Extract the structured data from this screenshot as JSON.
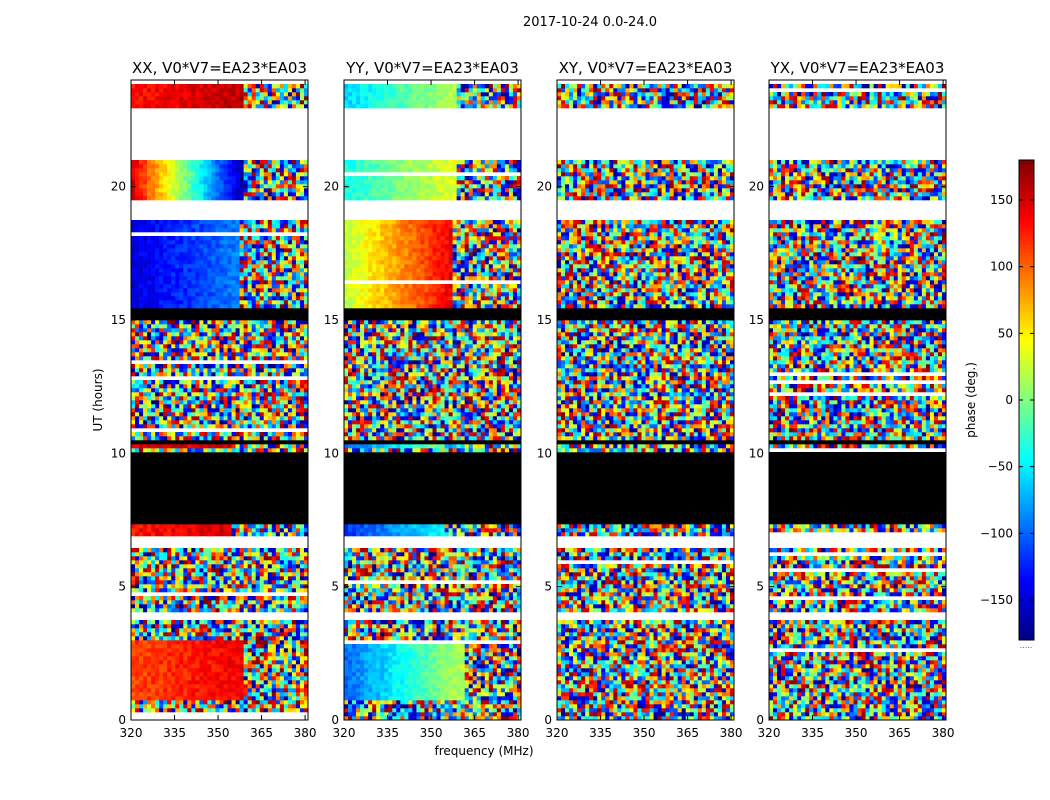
{
  "figure": {
    "suptitle": "2017-10-24 0.0-24.0",
    "xlabel": "frequency (MHz)",
    "ylabel": "UT (hours)",
    "colorbar_label": "phase (deg.)"
  },
  "chart_data": [
    {
      "type": "heatmap",
      "title": "XX, V0*V7=EA23*EA03",
      "xlabel": "frequency (MHz)",
      "ylabel": "UT (hours)",
      "xlim": [
        320,
        381
      ],
      "ylim": [
        0,
        24
      ],
      "xticks": [
        320,
        335,
        350,
        365,
        380
      ],
      "yticks": [
        0,
        5,
        10,
        15,
        20
      ],
      "value_range": [
        -180,
        180
      ],
      "colormap": "jet",
      "coherent_phase_segments": [
        {
          "t_start": 0.8,
          "t_end": 3.0,
          "f_start": 320,
          "f_end": 359,
          "phase_start": 110,
          "phase_end": 140
        },
        {
          "t_start": 6.9,
          "t_end": 7.4,
          "f_start": 320,
          "f_end": 355,
          "phase_start": 130,
          "phase_end": 150
        },
        {
          "t_start": 10.2,
          "t_end": 10.4,
          "f_start": 320,
          "f_end": 355,
          "phase_start": 140,
          "phase_end": 150
        },
        {
          "t_start": 15.5,
          "t_end": 18.7,
          "f_start": 320,
          "f_end": 357,
          "phase_start": -150,
          "phase_end": -90
        },
        {
          "t_start": 19.5,
          "t_end": 21.0,
          "f_start": 320,
          "f_end": 359,
          "phase_start": 150,
          "phase_end": -170
        },
        {
          "t_start": 23.0,
          "t_end": 23.9,
          "f_start": 320,
          "f_end": 359,
          "phase_start": 130,
          "phase_end": 160
        }
      ]
    },
    {
      "type": "heatmap",
      "title": "YY, V0*V7=EA23*EA03",
      "xlabel": "frequency (MHz)",
      "ylabel": "UT (hours)",
      "xlim": [
        320,
        381
      ],
      "ylim": [
        0,
        24
      ],
      "xticks": [
        320,
        335,
        350,
        365,
        380
      ],
      "yticks": [
        0,
        5,
        10,
        15,
        20
      ],
      "value_range": [
        -180,
        180
      ],
      "colormap": "jet",
      "coherent_phase_segments": [
        {
          "t_start": 0.8,
          "t_end": 3.0,
          "f_start": 320,
          "f_end": 361,
          "phase_start": -100,
          "phase_end": 20
        },
        {
          "t_start": 6.9,
          "t_end": 7.4,
          "f_start": 320,
          "f_end": 355,
          "phase_start": -120,
          "phase_end": -40
        },
        {
          "t_start": 10.2,
          "t_end": 10.4,
          "f_start": 320,
          "f_end": 355,
          "phase_start": -100,
          "phase_end": 0
        },
        {
          "t_start": 15.5,
          "t_end": 18.7,
          "f_start": 320,
          "f_end": 357,
          "phase_start": 20,
          "phase_end": 140
        },
        {
          "t_start": 19.5,
          "t_end": 21.0,
          "f_start": 320,
          "f_end": 359,
          "phase_start": -40,
          "phase_end": 40
        },
        {
          "t_start": 23.0,
          "t_end": 23.9,
          "f_start": 320,
          "f_end": 359,
          "phase_start": -60,
          "phase_end": 20
        }
      ]
    },
    {
      "type": "heatmap",
      "title": "XY, V0*V7=EA23*EA03",
      "xlabel": "frequency (MHz)",
      "ylabel": "UT (hours)",
      "xlim": [
        320,
        381
      ],
      "ylim": [
        0,
        24
      ],
      "xticks": [
        320,
        335,
        350,
        365,
        380
      ],
      "yticks": [
        0,
        5,
        10,
        15,
        20
      ],
      "value_range": [
        -180,
        180
      ],
      "colormap": "jet",
      "coherent_phase_segments": []
    },
    {
      "type": "heatmap",
      "title": "YX, V0*V7=EA23*EA03",
      "xlabel": "frequency (MHz)",
      "ylabel": "UT (hours)",
      "xlim": [
        320,
        381
      ],
      "ylim": [
        0,
        24
      ],
      "xticks": [
        320,
        335,
        350,
        365,
        380
      ],
      "yticks": [
        0,
        5,
        10,
        15,
        20
      ],
      "value_range": [
        -180,
        180
      ],
      "colormap": "jet",
      "coherent_phase_segments": []
    }
  ],
  "time_structure": {
    "flagged_black_intervals": [
      [
        7.4,
        10.0
      ],
      [
        15.0,
        15.5
      ],
      [
        10.4,
        10.5
      ]
    ],
    "empty_white_intervals": [
      [
        3.7,
        4.0
      ],
      [
        6.5,
        6.9
      ],
      [
        18.7,
        19.5
      ],
      [
        21.0,
        23.0
      ],
      [
        23.9,
        24.0
      ]
    ]
  },
  "colorbar": {
    "range": [
      -180,
      180
    ],
    "ticks": [
      -150,
      -100,
      -50,
      0,
      50,
      100,
      150
    ],
    "label": "phase (deg.)",
    "colormap": "jet",
    "footnote": "....."
  }
}
